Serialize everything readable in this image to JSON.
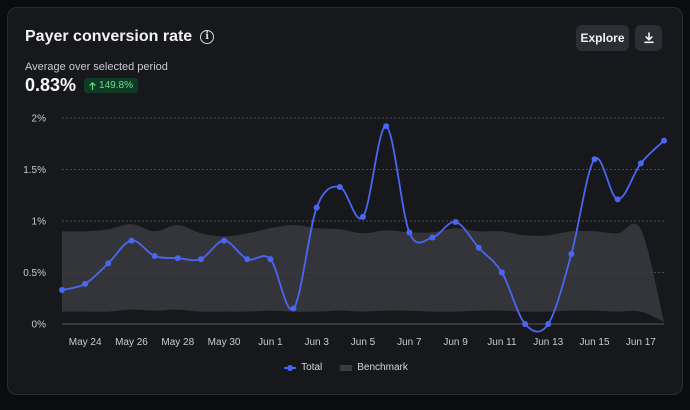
{
  "header": {
    "title": "Payer conversion rate",
    "explore_label": "Explore",
    "download_icon": "download-icon",
    "info_icon": "info-icon"
  },
  "summary": {
    "subtitle": "Average over selected period",
    "value": "0.83%",
    "change": "149.8%",
    "change_icon": "arrow-up-icon"
  },
  "colors": {
    "total": "#4a66f0",
    "benchmark": "#3a3b40",
    "badge_bg": "#113a24",
    "badge_text": "#5fe08c"
  },
  "chart_data": {
    "type": "line",
    "title": "Payer conversion rate",
    "x": [
      "May 23",
      "May 24",
      "May 25",
      "May 26",
      "May 27",
      "May 28",
      "May 29",
      "May 30",
      "May 31",
      "Jun 1",
      "Jun 2",
      "Jun 3",
      "Jun 4",
      "Jun 5",
      "Jun 6",
      "Jun 7",
      "Jun 8",
      "Jun 9",
      "Jun 10",
      "Jun 11",
      "Jun 12",
      "Jun 13",
      "Jun 14",
      "Jun 15",
      "Jun 16",
      "Jun 17",
      "Jun 18"
    ],
    "x_tick_labels": [
      "May 24",
      "May 26",
      "May 28",
      "May 30",
      "Jun 1",
      "Jun 3",
      "Jun 5",
      "Jun 7",
      "Jun 9",
      "Jun 11",
      "Jun 13",
      "Jun 15",
      "Jun 17"
    ],
    "y_ticks": [
      "0%",
      "0.5%",
      "1%",
      "1.5%",
      "2%"
    ],
    "ylim": [
      0,
      2
    ],
    "grid": true,
    "legend_position": "bottom",
    "series": [
      {
        "name": "Total",
        "values": [
          0.33,
          0.39,
          0.59,
          0.81,
          0.66,
          0.64,
          0.63,
          0.81,
          0.63,
          0.63,
          0.15,
          1.13,
          1.33,
          1.04,
          1.92,
          0.89,
          0.84,
          0.99,
          0.74,
          0.5,
          0.0,
          0.0,
          0.68,
          1.6,
          1.21,
          1.56,
          1.78
        ]
      },
      {
        "name": "Benchmark",
        "type": "area",
        "upper": [
          0.9,
          0.9,
          0.92,
          0.97,
          0.9,
          0.96,
          0.88,
          0.85,
          0.88,
          0.93,
          0.96,
          0.93,
          0.92,
          0.88,
          0.91,
          0.89,
          0.89,
          0.93,
          0.9,
          0.9,
          0.86,
          0.86,
          0.9,
          0.9,
          0.88,
          0.92,
          0.02
        ],
        "lower": [
          0.12,
          0.12,
          0.12,
          0.14,
          0.13,
          0.14,
          0.12,
          0.12,
          0.12,
          0.13,
          0.12,
          0.12,
          0.13,
          0.12,
          0.13,
          0.13,
          0.12,
          0.12,
          0.13,
          0.13,
          0.12,
          0.12,
          0.13,
          0.13,
          0.12,
          0.12,
          0.02
        ]
      }
    ]
  }
}
